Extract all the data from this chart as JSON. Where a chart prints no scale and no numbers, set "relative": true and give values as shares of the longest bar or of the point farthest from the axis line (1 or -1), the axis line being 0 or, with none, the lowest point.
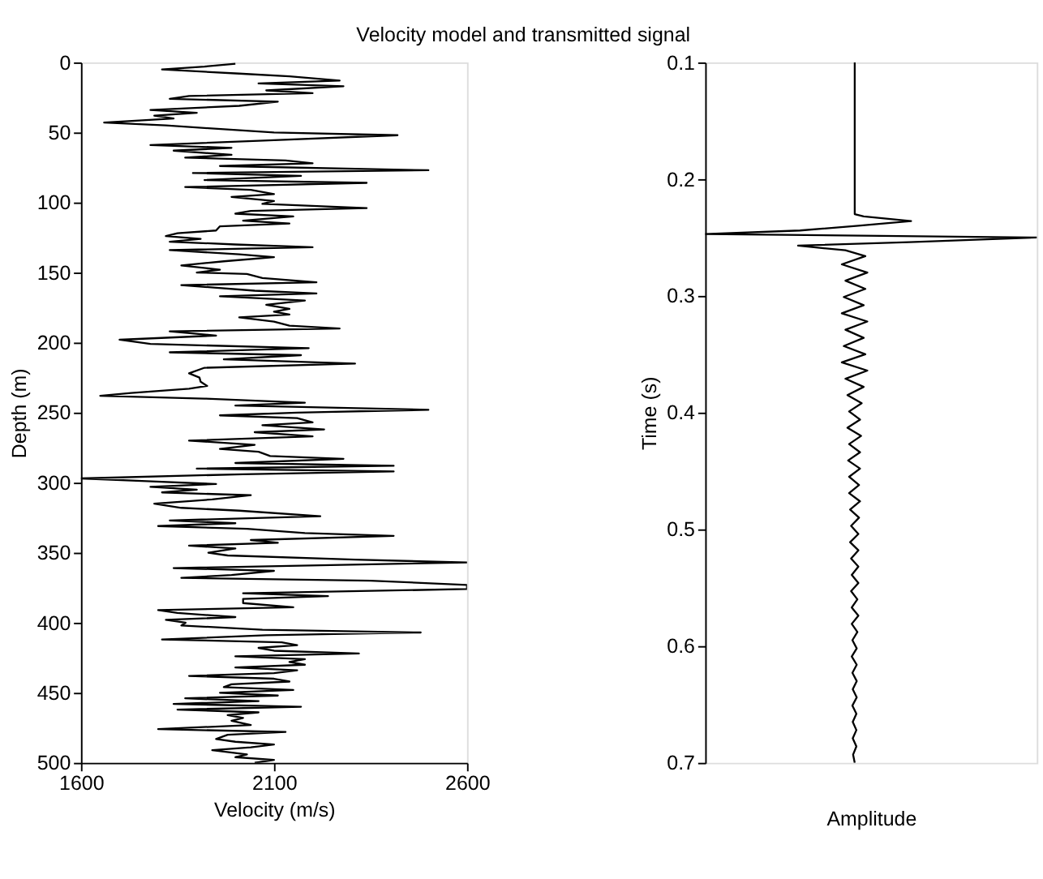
{
  "chart_data": [
    {
      "type": "line",
      "title": "Velocity model and transmitted signal",
      "orientation": "horizontal",
      "xlabel": "Velocity (m/s)",
      "ylabel": "Depth (m)",
      "color": "#000000",
      "x": [
        1,
        3,
        5,
        8,
        10,
        13,
        15,
        17,
        20,
        22,
        24,
        26,
        28,
        31,
        34,
        36,
        38,
        40,
        43,
        45,
        47,
        50,
        52,
        56,
        59,
        61,
        63,
        66,
        68,
        70,
        72,
        74,
        77,
        79,
        81,
        84,
        86,
        89,
        91,
        94,
        96,
        99,
        101,
        104,
        106,
        108,
        110,
        113,
        115,
        117,
        120,
        122,
        124,
        126,
        128,
        130,
        132,
        134,
        137,
        139,
        142,
        145,
        148,
        150,
        151,
        154,
        157,
        159,
        163,
        165,
        167,
        170,
        173,
        176,
        178,
        180,
        182,
        185,
        188,
        190,
        192,
        195,
        198,
        201,
        204,
        207,
        209,
        212,
        215,
        218,
        222,
        225,
        228,
        231,
        233,
        236,
        238,
        240,
        243,
        245,
        248,
        250,
        252,
        254,
        257,
        259,
        262,
        264,
        267,
        270,
        273,
        276,
        278,
        281,
        283,
        286,
        288,
        290,
        292,
        294,
        297,
        299,
        301,
        303,
        305,
        307,
        309,
        312,
        315,
        318,
        320,
        324,
        327,
        329,
        331,
        333,
        336,
        338,
        341,
        343,
        345,
        347,
        350,
        352,
        355,
        357,
        359,
        361,
        363,
        366,
        368,
        370,
        373,
        376,
        379,
        381,
        383,
        386,
        389,
        391,
        393,
        396,
        398,
        400,
        402,
        405,
        407,
        409,
        412,
        414,
        416,
        418,
        420,
        422,
        424,
        426,
        428,
        430,
        432,
        434,
        436,
        438,
        440,
        442,
        444,
        446,
        448,
        450,
        452,
        454,
        456,
        458,
        460,
        462,
        464,
        466,
        468,
        470,
        473,
        476,
        478,
        480,
        483,
        485,
        487,
        489,
        491,
        494,
        496,
        498,
        500
      ],
      "values": [
        2000,
        1920,
        1810,
        2010,
        2140,
        2270,
        2060,
        2280,
        2080,
        2200,
        1880,
        1830,
        2110,
        2010,
        1780,
        1900,
        1790,
        1840,
        1660,
        1820,
        1930,
        2100,
        2420,
        2060,
        1780,
        1990,
        1840,
        1990,
        1870,
        2130,
        2200,
        1960,
        2500,
        1890,
        2170,
        1920,
        2340,
        1870,
        2040,
        2100,
        1990,
        2100,
        2070,
        2340,
        2040,
        2000,
        2150,
        2020,
        2140,
        1960,
        1950,
        1850,
        1820,
        1910,
        1830,
        2000,
        2200,
        1830,
        2010,
        2100,
        1970,
        1860,
        1960,
        1900,
        2030,
        2070,
        2210,
        1860,
        2050,
        2210,
        1960,
        2180,
        2080,
        2140,
        2100,
        2140,
        2010,
        2100,
        2140,
        2270,
        1830,
        1950,
        1700,
        1780,
        2190,
        1830,
        2170,
        1970,
        2310,
        1920,
        1880,
        1907,
        1910,
        1927,
        1880,
        1730,
        1650,
        1920,
        2180,
        2000,
        2500,
        2160,
        1960,
        2160,
        2200,
        2070,
        2230,
        2050,
        2200,
        1880,
        2050,
        1960,
        2060,
        2090,
        2280,
        2000,
        2410,
        1900,
        2410,
        2020,
        1600,
        1770,
        1950,
        1780,
        1900,
        1810,
        2040,
        1940,
        1790,
        1860,
        2010,
        2220,
        1830,
        2000,
        1800,
        2030,
        2180,
        2410,
        2040,
        2110,
        1880,
        2000,
        1930,
        1980,
        2310,
        2600,
        2220,
        1840,
        2100,
        1990,
        1860,
        2350,
        2600,
        2600,
        2020,
        2240,
        2020,
        2020,
        2150,
        1800,
        1850,
        2000,
        1820,
        1871,
        1860,
        2070,
        2480,
        2080,
        1810,
        2120,
        2160,
        2060,
        2100,
        2320,
        2000,
        2180,
        2140,
        2180,
        2000,
        2160,
        2100,
        1880,
        2100,
        2140,
        1990,
        1970,
        2150,
        1960,
        2110,
        1870,
        2060,
        1840,
        2170,
        1850,
        2060,
        1980,
        2020,
        1990,
        2040,
        1800,
        2130,
        1980,
        1950,
        2000,
        2100,
        2040,
        1940,
        2030,
        2000,
        2100,
        2050
      ],
      "xlim": [
        1600,
        2600
      ],
      "xticks": [
        1600,
        2100,
        2600
      ],
      "ylim": [
        500,
        0
      ],
      "yticks": [
        0,
        50,
        100,
        150,
        200,
        250,
        300,
        350,
        400,
        450,
        500
      ]
    },
    {
      "type": "line",
      "orientation": "horizontal",
      "relative": true,
      "xlabel": "Amplitude",
      "ylabel": "Time (s)",
      "color": "#000000",
      "tick_labels": "y",
      "x": [
        0.1,
        0.23,
        0.232,
        0.236,
        0.24,
        0.244,
        0.247,
        0.25,
        0.254,
        0.257,
        0.261,
        0.266,
        0.273,
        0.28,
        0.287,
        0.294,
        0.301,
        0.308,
        0.315,
        0.322,
        0.329,
        0.336,
        0.343,
        0.35,
        0.357,
        0.364,
        0.371,
        0.378,
        0.385,
        0.392,
        0.399,
        0.406,
        0.413,
        0.42,
        0.427,
        0.434,
        0.441,
        0.448,
        0.455,
        0.462,
        0.469,
        0.476,
        0.483,
        0.49,
        0.497,
        0.504,
        0.511,
        0.518,
        0.525,
        0.532,
        0.539,
        0.546,
        0.553,
        0.56,
        0.567,
        0.574,
        0.581,
        0.588,
        0.595,
        0.602,
        0.609,
        0.616,
        0.623,
        0.63,
        0.637,
        0.644,
        0.651,
        0.658,
        0.665,
        0.672,
        0.679,
        0.686,
        0.693,
        0.7
      ],
      "values": [
        0.451,
        0.451,
        0.478,
        0.621,
        0.462,
        0.286,
        0,
        1,
        0.615,
        0.28,
        0.423,
        0.483,
        0.412,
        0.489,
        0.423,
        0.483,
        0.418,
        0.478,
        0.412,
        0.489,
        0.423,
        0.478,
        0.418,
        0.483,
        0.412,
        0.489,
        0.423,
        0.478,
        0.429,
        0.472,
        0.434,
        0.467,
        0.429,
        0.47,
        0.434,
        0.467,
        0.431,
        0.467,
        0.434,
        0.464,
        0.434,
        0.467,
        0.437,
        0.464,
        0.44,
        0.462,
        0.437,
        0.462,
        0.44,
        0.462,
        0.442,
        0.462,
        0.44,
        0.459,
        0.442,
        0.462,
        0.442,
        0.459,
        0.444,
        0.457,
        0.442,
        0.457,
        0.444,
        0.457,
        0.445,
        0.457,
        0.444,
        0.456,
        0.445,
        0.456,
        0.445,
        0.456,
        0.446,
        0.451
      ],
      "ylim": [
        0.7,
        0.1
      ],
      "yticks": [
        0.1,
        0.2,
        0.3,
        0.4,
        0.5,
        0.6,
        0.7
      ]
    }
  ]
}
